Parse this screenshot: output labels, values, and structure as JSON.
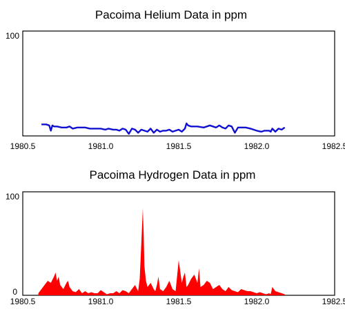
{
  "chart_data": [
    {
      "type": "line",
      "title": "Pacoima Helium Data in ppm",
      "xlabel": "",
      "ylabel": "",
      "xlim": [
        1980.5,
        1982.5
      ],
      "ylim": [
        0,
        100
      ],
      "x_ticks": [
        1980.5,
        1981.0,
        1981.5,
        1982.0,
        1982.5
      ],
      "x_tick_labels": [
        "1980.5",
        "1981.0",
        "1981.5",
        "1982.0",
        "1982.5"
      ],
      "y_tick_labels": [
        "100"
      ],
      "grid": false,
      "color": "#1010d0",
      "series": [
        {
          "x": [
            1980.62,
            1980.65,
            1980.67,
            1980.68,
            1980.69,
            1980.7,
            1980.72,
            1980.75,
            1980.78,
            1980.8,
            1980.82,
            1980.85,
            1980.88,
            1980.9,
            1980.93,
            1980.96,
            1981.0,
            1981.03,
            1981.05,
            1981.08,
            1981.1,
            1981.12,
            1981.14,
            1981.16,
            1981.18,
            1981.2,
            1981.22,
            1981.24,
            1981.26,
            1981.28,
            1981.3,
            1981.32,
            1981.34,
            1981.36,
            1981.38,
            1981.4,
            1981.42,
            1981.44,
            1981.46,
            1981.48,
            1981.5,
            1981.52,
            1981.54,
            1981.55,
            1981.56,
            1981.58,
            1981.62,
            1981.66,
            1981.7,
            1981.72,
            1981.74,
            1981.76,
            1981.78,
            1981.8,
            1981.82,
            1981.84,
            1981.86,
            1981.88,
            1981.9,
            1981.93,
            1981.96,
            1981.98,
            1982.0,
            1982.03,
            1982.05,
            1982.07,
            1982.08,
            1982.09,
            1982.1,
            1982.12,
            1982.14,
            1982.16,
            1982.18
          ],
          "y": [
            11,
            11,
            10,
            5,
            10,
            9,
            9,
            8,
            8,
            9,
            7,
            8,
            8,
            8,
            7,
            7,
            7,
            6,
            7,
            6,
            6,
            5,
            7,
            6,
            2,
            7,
            6,
            3,
            6,
            5,
            4,
            7,
            3,
            6,
            4,
            5,
            5,
            6,
            4,
            5,
            6,
            4,
            7,
            12,
            10,
            9,
            9,
            8,
            10,
            9,
            8,
            10,
            8,
            7,
            10,
            9,
            3,
            8,
            8,
            8,
            7,
            6,
            5,
            4,
            5,
            5,
            5,
            4,
            7,
            4,
            7,
            6,
            8
          ]
        }
      ]
    },
    {
      "type": "area",
      "title": "Pacoima Hydrogen Data in ppm",
      "xlabel": "",
      "ylabel": "",
      "xlim": [
        1980.5,
        1982.5
      ],
      "ylim": [
        0,
        100
      ],
      "x_ticks": [
        1980.5,
        1981.0,
        1981.5,
        1982.0,
        1982.5
      ],
      "x_tick_labels": [
        "1980.5",
        "1981.0",
        "1981.5",
        "1982.0",
        "1982.5"
      ],
      "y_ticks": [
        0,
        100
      ],
      "y_tick_labels": [
        "0",
        "100"
      ],
      "grid": false,
      "color": "#ff0000",
      "series": [
        {
          "x": [
            1980.6,
            1980.62,
            1980.64,
            1980.66,
            1980.68,
            1980.7,
            1980.71,
            1980.72,
            1980.73,
            1980.74,
            1980.76,
            1980.78,
            1980.79,
            1980.8,
            1980.82,
            1980.84,
            1980.86,
            1980.88,
            1980.9,
            1980.92,
            1980.94,
            1980.96,
            1980.98,
            1981.0,
            1981.02,
            1981.04,
            1981.06,
            1981.08,
            1981.1,
            1981.12,
            1981.14,
            1981.16,
            1981.18,
            1981.2,
            1981.22,
            1981.24,
            1981.25,
            1981.26,
            1981.27,
            1981.275,
            1981.28,
            1981.29,
            1981.3,
            1981.32,
            1981.34,
            1981.35,
            1981.36,
            1981.37,
            1981.38,
            1981.4,
            1981.42,
            1981.44,
            1981.46,
            1981.48,
            1981.5,
            1981.52,
            1981.53,
            1981.54,
            1981.55,
            1981.56,
            1981.58,
            1981.6,
            1981.62,
            1981.63,
            1981.64,
            1981.66,
            1981.68,
            1981.7,
            1981.72,
            1981.74,
            1981.76,
            1981.78,
            1981.8,
            1981.82,
            1981.84,
            1981.86,
            1981.88,
            1981.9,
            1981.92,
            1981.94,
            1981.96,
            1981.98,
            1982.0,
            1982.02,
            1982.04,
            1982.06,
            1982.08,
            1982.09,
            1982.1,
            1982.12,
            1982.14,
            1982.16,
            1982.18
          ],
          "y": [
            2,
            6,
            10,
            14,
            12,
            18,
            22,
            14,
            18,
            10,
            6,
            12,
            14,
            8,
            4,
            3,
            6,
            2,
            4,
            2,
            3,
            2,
            2,
            5,
            3,
            1,
            2,
            2,
            4,
            2,
            5,
            4,
            2,
            6,
            10,
            4,
            16,
            50,
            84,
            60,
            28,
            14,
            8,
            12,
            6,
            4,
            10,
            18,
            6,
            4,
            8,
            14,
            6,
            4,
            34,
            12,
            18,
            22,
            8,
            10,
            16,
            20,
            12,
            26,
            8,
            10,
            14,
            12,
            6,
            8,
            10,
            6,
            4,
            8,
            5,
            4,
            3,
            6,
            5,
            4,
            4,
            3,
            2,
            3,
            2,
            1,
            2,
            1,
            8,
            4,
            3,
            2,
            1
          ]
        }
      ]
    }
  ]
}
